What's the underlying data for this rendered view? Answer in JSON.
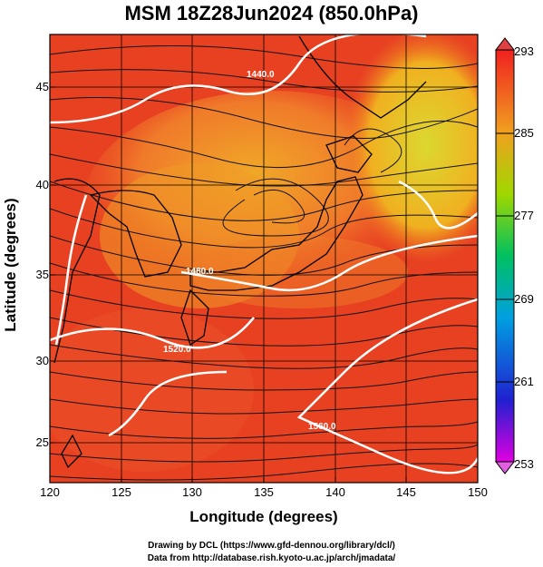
{
  "title": "MSM 18Z28Jun2024 (850.0hPa)",
  "xaxis": {
    "label": "Longitude (degrees)",
    "ticks": [
      "120",
      "125",
      "130",
      "135",
      "140",
      "145",
      "150"
    ]
  },
  "yaxis": {
    "label": "Latitude  (degrees)",
    "ticks": [
      "45",
      "40",
      "35",
      "30",
      "25"
    ]
  },
  "colorbar": {
    "ticks": [
      "293",
      "285",
      "277",
      "269",
      "261",
      "253"
    ]
  },
  "contours": [
    "1440.0",
    "1480.0",
    "1520.0",
    "1560.0",
    "1440.0"
  ],
  "footer": {
    "line1": "Drawing by DCL (https://www.gfd-dennou.org/library/dcl/)",
    "line2": "Data from http://database.rish.kyoto-u.ac.jp/arch/jmadata/"
  },
  "chart_data": {
    "type": "heatmap",
    "title": "MSM 18Z28Jun2024 (850.0hPa)",
    "xlabel": "Longitude (degrees)",
    "ylabel": "Latitude  (degrees)",
    "xlim": [
      120,
      150
    ],
    "ylim": [
      22.4,
      47.6
    ],
    "color_range": [
      253,
      293
    ],
    "colors": {
      "warm": "#e83818",
      "hot": "#f05a28",
      "mid": "#f5a020",
      "cool": "#e0d820"
    },
    "contour_labels": [
      "1440.0",
      "1480.0",
      "1520.0",
      "1560.0"
    ]
  }
}
